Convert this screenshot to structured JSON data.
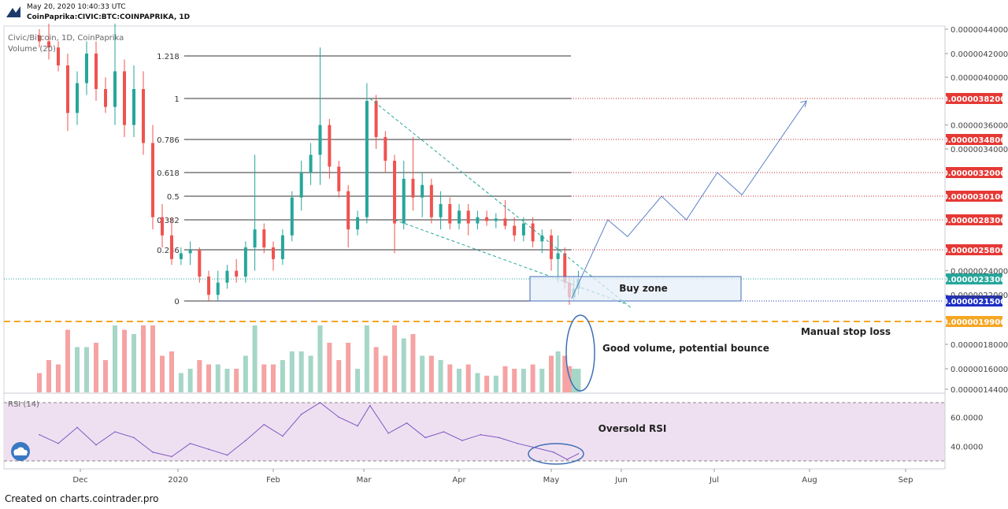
{
  "header": {
    "datetime": "May 20, 2020 10:40:33 UTC",
    "symbol_line": "CoinPaprika:CIVIC:BTC:COINPAPRIKA, 1D"
  },
  "footer": {
    "credit": "Created on charts.cointrader.pro"
  },
  "colors": {
    "up": "#26a69a",
    "down": "#ef5350",
    "volume_up": "#a5d6c7",
    "volume_down": "#f5a3a3",
    "rsi_line": "#7e57c2",
    "rsi_band": "#efe0f1",
    "fib_line_black": "#333333",
    "fib_line_red": "#c62828",
    "stop_loss": "#f5a623",
    "annotation_blue": "#3f6fb5",
    "buy_zone_fill": "#e6eef8"
  },
  "chart_data": [
    {
      "type": "candlestick",
      "pane": "price",
      "title": "Civic/Bitcoin, 1D, CoinPaprika",
      "volume_label": "Volume (20)",
      "x_ticks": [
        "Dec",
        "2020",
        "Feb",
        "Mar",
        "Apr",
        "May",
        "Jun",
        "Jul",
        "Aug",
        "Sep"
      ],
      "y_ticks": [
        "0.0000044000",
        "0.0000042000",
        "0.0000040000",
        "0.0000036000",
        "0.0000034000",
        "0.0000024000",
        "0.0000022000",
        "0.0000018000",
        "0.0000016000",
        "0.0000014400"
      ],
      "ylim": [
        1.35e-06,
        4.5e-06
      ],
      "price_labels": [
        {
          "value": "0.0000038200",
          "color": "#e53935"
        },
        {
          "value": "0.0000034800",
          "color": "#e53935"
        },
        {
          "value": "0.0000032000",
          "color": "#e53935"
        },
        {
          "value": "0.0000030100",
          "color": "#e53935"
        },
        {
          "value": "0.0000028300",
          "color": "#e53935"
        },
        {
          "value": "0.0000025800",
          "color": "#e53935"
        },
        {
          "value": "0.0000023300",
          "color": "#26a69a"
        },
        {
          "value": "0.0000021500",
          "color": "#1e2fc4"
        },
        {
          "value": "0.0000019900",
          "color": "#f5a623"
        }
      ],
      "fib_levels": [
        {
          "label": "1.218",
          "price": 4.18e-06
        },
        {
          "label": "1",
          "price": 3.82e-06
        },
        {
          "label": "0.786",
          "price": 3.48e-06
        },
        {
          "label": "0.618",
          "price": 3.2e-06
        },
        {
          "label": "0.5",
          "price": 3.01e-06
        },
        {
          "label": "0.382",
          "price": 2.83e-06
        },
        {
          "label": "0.236",
          "price": 2.58e-06
        },
        {
          "label": "0",
          "price": 2.15e-06
        }
      ],
      "annotations": {
        "buy_zone": "Buy zone",
        "manual_stop_loss": "Manual stop loss",
        "good_volume": "Good volume, potential bounce"
      },
      "projection_path": [
        {
          "date": "2020-05-10",
          "price": 2.17e-06
        },
        {
          "date": "2020-05-26",
          "price": 2.83e-06
        },
        {
          "date": "2020-06-03",
          "price": 2.69e-06
        },
        {
          "date": "2020-06-14",
          "price": 3.01e-06
        },
        {
          "date": "2020-06-22",
          "price": 2.83e-06
        },
        {
          "date": "2020-07-02",
          "price": 3.2e-06
        },
        {
          "date": "2020-07-10",
          "price": 3.02e-06
        },
        {
          "date": "2020-07-31",
          "price": 3.8e-06
        }
      ],
      "series_ohlc": [
        {
          "date": "2019-11-18",
          "open": 4.35e-06,
          "high": 4.4e-06,
          "low": 4.25e-06,
          "close": 4.3e-06
        },
        {
          "date": "2019-11-21",
          "open": 4.3e-06,
          "high": 4.45e-06,
          "low": 4.15e-06,
          "close": 4.25e-06
        },
        {
          "date": "2019-11-24",
          "open": 4.25e-06,
          "high": 4.3e-06,
          "low": 4.05e-06,
          "close": 4.1e-06
        },
        {
          "date": "2019-11-27",
          "open": 4.1e-06,
          "high": 4.2e-06,
          "low": 3.55e-06,
          "close": 3.7e-06
        },
        {
          "date": "2019-11-30",
          "open": 3.7e-06,
          "high": 4.05e-06,
          "low": 3.6e-06,
          "close": 3.95e-06
        },
        {
          "date": "2019-12-03",
          "open": 3.95e-06,
          "high": 4.3e-06,
          "low": 3.85e-06,
          "close": 4.2e-06
        },
        {
          "date": "2019-12-06",
          "open": 4.2e-06,
          "high": 4.3e-06,
          "low": 3.8e-06,
          "close": 3.9e-06
        },
        {
          "date": "2019-12-09",
          "open": 3.9e-06,
          "high": 4e-06,
          "low": 3.7e-06,
          "close": 3.75e-06
        },
        {
          "date": "2019-12-12",
          "open": 3.75e-06,
          "high": 4.45e-06,
          "low": 3.6e-06,
          "close": 4.05e-06
        },
        {
          "date": "2019-12-15",
          "open": 4.05e-06,
          "high": 4.15e-06,
          "low": 3.5e-06,
          "close": 3.6e-06
        },
        {
          "date": "2019-12-18",
          "open": 3.6e-06,
          "high": 4.1e-06,
          "low": 3.5e-06,
          "close": 3.9e-06
        },
        {
          "date": "2019-12-21",
          "open": 3.9e-06,
          "high": 4.05e-06,
          "low": 3.35e-06,
          "close": 3.45e-06
        },
        {
          "date": "2019-12-24",
          "open": 3.45e-06,
          "high": 3.6e-06,
          "low": 2.75e-06,
          "close": 2.85e-06
        },
        {
          "date": "2019-12-27",
          "open": 2.85e-06,
          "high": 2.95e-06,
          "low": 2.6e-06,
          "close": 2.7e-06
        },
        {
          "date": "2019-12-30",
          "open": 2.7e-06,
          "high": 2.85e-06,
          "low": 2.45e-06,
          "close": 2.5e-06
        },
        {
          "date": "2020-01-02",
          "open": 2.5e-06,
          "high": 2.6e-06,
          "low": 2.45e-06,
          "close": 2.55e-06
        },
        {
          "date": "2020-01-05",
          "open": 2.55e-06,
          "high": 2.65e-06,
          "low": 2.45e-06,
          "close": 2.58e-06
        },
        {
          "date": "2020-01-08",
          "open": 2.58e-06,
          "high": 2.6e-06,
          "low": 2.3e-06,
          "close": 2.35e-06
        },
        {
          "date": "2020-01-11",
          "open": 2.35e-06,
          "high": 2.4e-06,
          "low": 2.15e-06,
          "close": 2.2e-06
        },
        {
          "date": "2020-01-14",
          "open": 2.2e-06,
          "high": 2.4e-06,
          "low": 2.15e-06,
          "close": 2.3e-06
        },
        {
          "date": "2020-01-17",
          "open": 2.3e-06,
          "high": 2.45e-06,
          "low": 2.25e-06,
          "close": 2.4e-06
        },
        {
          "date": "2020-01-20",
          "open": 2.4e-06,
          "high": 2.5e-06,
          "low": 2.3e-06,
          "close": 2.35e-06
        },
        {
          "date": "2020-01-23",
          "open": 2.35e-06,
          "high": 2.65e-06,
          "low": 2.3e-06,
          "close": 2.6e-06
        },
        {
          "date": "2020-01-26",
          "open": 2.6e-06,
          "high": 3.35e-06,
          "low": 2.4e-06,
          "close": 2.75e-06
        },
        {
          "date": "2020-01-29",
          "open": 2.75e-06,
          "high": 2.8e-06,
          "low": 2.55e-06,
          "close": 2.6e-06
        },
        {
          "date": "2020-02-01",
          "open": 2.6e-06,
          "high": 2.65e-06,
          "low": 2.4e-06,
          "close": 2.5e-06
        },
        {
          "date": "2020-02-04",
          "open": 2.5e-06,
          "high": 2.75e-06,
          "low": 2.45e-06,
          "close": 2.7e-06
        },
        {
          "date": "2020-02-07",
          "open": 2.7e-06,
          "high": 3.05e-06,
          "low": 2.65e-06,
          "close": 3e-06
        },
        {
          "date": "2020-02-10",
          "open": 3e-06,
          "high": 3.3e-06,
          "low": 2.9e-06,
          "close": 3.2e-06
        },
        {
          "date": "2020-02-13",
          "open": 3.2e-06,
          "high": 3.45e-06,
          "low": 3.1e-06,
          "close": 3.35e-06
        },
        {
          "date": "2020-02-16",
          "open": 3.35e-06,
          "high": 4.25e-06,
          "low": 3.1e-06,
          "close": 3.6e-06
        },
        {
          "date": "2020-02-19",
          "open": 3.6e-06,
          "high": 3.65e-06,
          "low": 3.15e-06,
          "close": 3.25e-06
        },
        {
          "date": "2020-02-22",
          "open": 3.25e-06,
          "high": 3.3e-06,
          "low": 3e-06,
          "close": 3.05e-06
        },
        {
          "date": "2020-02-25",
          "open": 3.05e-06,
          "high": 3.1e-06,
          "low": 2.6e-06,
          "close": 2.75e-06
        },
        {
          "date": "2020-02-28",
          "open": 2.75e-06,
          "high": 2.9e-06,
          "low": 2.7e-06,
          "close": 2.85e-06
        },
        {
          "date": "2020-03-02",
          "open": 2.85e-06,
          "high": 3.95e-06,
          "low": 2.8e-06,
          "close": 3.8e-06
        },
        {
          "date": "2020-03-05",
          "open": 3.8e-06,
          "high": 3.85e-06,
          "low": 3.4e-06,
          "close": 3.5e-06
        },
        {
          "date": "2020-03-08",
          "open": 3.5e-06,
          "high": 3.55e-06,
          "low": 3.2e-06,
          "close": 3.3e-06
        },
        {
          "date": "2020-03-11",
          "open": 3.3e-06,
          "high": 3.35e-06,
          "low": 2.55e-06,
          "close": 2.8e-06
        },
        {
          "date": "2020-03-14",
          "open": 2.8e-06,
          "high": 3.3e-06,
          "low": 2.75e-06,
          "close": 3.15e-06
        },
        {
          "date": "2020-03-17",
          "open": 3.15e-06,
          "high": 3.5e-06,
          "low": 2.9e-06,
          "close": 3e-06
        },
        {
          "date": "2020-03-20",
          "open": 3e-06,
          "high": 3.2e-06,
          "low": 2.85e-06,
          "close": 3.1e-06
        },
        {
          "date": "2020-03-23",
          "open": 3.1e-06,
          "high": 3.15e-06,
          "low": 2.8e-06,
          "close": 2.85e-06
        },
        {
          "date": "2020-03-26",
          "open": 2.85e-06,
          "high": 3.05e-06,
          "low": 2.75e-06,
          "close": 2.95e-06
        },
        {
          "date": "2020-03-29",
          "open": 2.95e-06,
          "high": 3e-06,
          "low": 2.75e-06,
          "close": 2.8e-06
        },
        {
          "date": "2020-04-01",
          "open": 2.8e-06,
          "high": 2.95e-06,
          "low": 2.75e-06,
          "close": 2.9e-06
        },
        {
          "date": "2020-04-04",
          "open": 2.9e-06,
          "high": 2.95e-06,
          "low": 2.7e-06,
          "close": 2.8e-06
        },
        {
          "date": "2020-04-07",
          "open": 2.8e-06,
          "high": 2.9e-06,
          "low": 2.75e-06,
          "close": 2.85e-06
        },
        {
          "date": "2020-04-10",
          "open": 2.85e-06,
          "high": 2.9e-06,
          "low": 2.78e-06,
          "close": 2.82e-06
        },
        {
          "date": "2020-04-13",
          "open": 2.82e-06,
          "high": 2.88e-06,
          "low": 2.76e-06,
          "close": 2.84e-06
        },
        {
          "date": "2020-04-16",
          "open": 2.84e-06,
          "high": 2.98e-06,
          "low": 2.75e-06,
          "close": 2.78e-06
        },
        {
          "date": "2020-04-19",
          "open": 2.78e-06,
          "high": 2.85e-06,
          "low": 2.65e-06,
          "close": 2.7e-06
        },
        {
          "date": "2020-04-22",
          "open": 2.7e-06,
          "high": 2.85e-06,
          "low": 2.65e-06,
          "close": 2.8e-06
        },
        {
          "date": "2020-04-25",
          "open": 2.8e-06,
          "high": 2.85e-06,
          "low": 2.6e-06,
          "close": 2.65e-06
        },
        {
          "date": "2020-04-28",
          "open": 2.65e-06,
          "high": 2.75e-06,
          "low": 2.55e-06,
          "close": 2.7e-06
        },
        {
          "date": "2020-05-01",
          "open": 2.7e-06,
          "high": 2.75e-06,
          "low": 2.4e-06,
          "close": 2.5e-06
        },
        {
          "date": "2020-05-04",
          "open": 2.5e-06,
          "high": 2.7e-06,
          "low": 2.3e-06,
          "close": 2.55e-06
        },
        {
          "date": "2020-05-07",
          "open": 2.55e-06,
          "high": 2.6e-06,
          "low": 2.25e-06,
          "close": 2.3e-06
        },
        {
          "date": "2020-05-09",
          "open": 2.3e-06,
          "high": 2.35e-06,
          "low": 2.12e-06,
          "close": 2.18e-06
        },
        {
          "date": "2020-05-11",
          "open": 2.18e-06,
          "high": 2.35e-06,
          "low": 2.15e-06,
          "close": 2.25e-06
        },
        {
          "date": "2020-05-13",
          "open": 2.25e-06,
          "high": 2.4e-06,
          "low": 2.2e-06,
          "close": 2.33e-06
        }
      ]
    },
    {
      "type": "line",
      "pane": "rsi",
      "title": "RSI (14)",
      "y_ticks": [
        "60.0000",
        "40.0000"
      ],
      "ylim": [
        26,
        76
      ],
      "bands": [
        30,
        70
      ],
      "annotation": "Oversold RSI",
      "x": [
        "2019-11-18",
        "2019-11-24",
        "2019-11-30",
        "2019-12-06",
        "2019-12-12",
        "2019-12-18",
        "2019-12-24",
        "2019-12-30",
        "2020-01-05",
        "2020-01-11",
        "2020-01-17",
        "2020-01-23",
        "2020-01-29",
        "2020-02-04",
        "2020-02-10",
        "2020-02-16",
        "2020-02-22",
        "2020-02-28",
        "2020-03-03",
        "2020-03-09",
        "2020-03-15",
        "2020-03-21",
        "2020-03-27",
        "2020-04-02",
        "2020-04-08",
        "2020-04-14",
        "2020-04-20",
        "2020-04-26",
        "2020-05-02",
        "2020-05-08",
        "2020-05-13"
      ],
      "values": [
        48,
        42,
        53,
        41,
        50,
        46,
        36,
        33,
        42,
        38,
        34,
        44,
        55,
        47,
        62,
        70,
        60,
        54,
        68,
        49,
        56,
        46,
        50,
        44,
        48,
        46,
        42,
        39,
        36,
        31,
        35
      ]
    }
  ]
}
